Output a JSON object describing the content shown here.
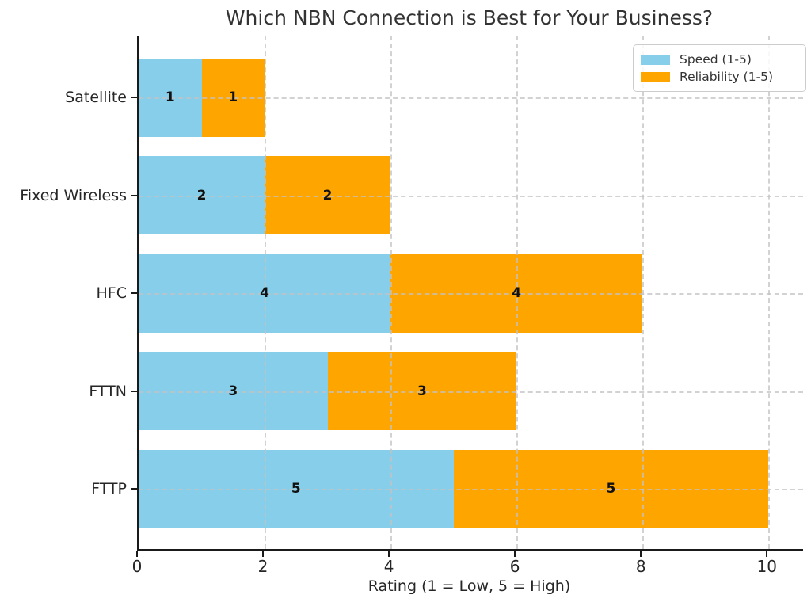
{
  "title": "Which NBN Connection is Best for Your Business?",
  "chart_data": {
    "type": "bar",
    "orientation": "horizontal",
    "stacked": true,
    "title": "Which NBN Connection is Best for Your Business?",
    "xlabel": "Rating (1 = Low, 5 = High)",
    "ylabel": "",
    "categories": [
      "Satellite",
      "Fixed Wireless",
      "HFC",
      "FTTN",
      "FTTP"
    ],
    "series": [
      {
        "name": "Speed (1-5)",
        "color": "#87CEEB",
        "values": [
          1,
          2,
          4,
          3,
          5
        ]
      },
      {
        "name": "Reliability (1-5)",
        "color": "#FFA500",
        "values": [
          1,
          2,
          4,
          3,
          5
        ]
      }
    ],
    "bar_value_labels": [
      [
        1,
        2,
        4,
        3,
        5
      ],
      [
        1,
        2,
        4,
        3,
        5
      ]
    ],
    "xlim": [
      0,
      10.55
    ],
    "xticks": [
      0,
      2,
      4,
      6,
      8,
      10
    ],
    "grid": true,
    "grid_style": "dashed",
    "legend_position": "upper right",
    "colors": {
      "speed": "#87CEEB",
      "reliability": "#FFA500",
      "spine": "#1a1a1a",
      "grid": "#c3c3c3",
      "text": "#262626",
      "title": "#333333"
    }
  }
}
